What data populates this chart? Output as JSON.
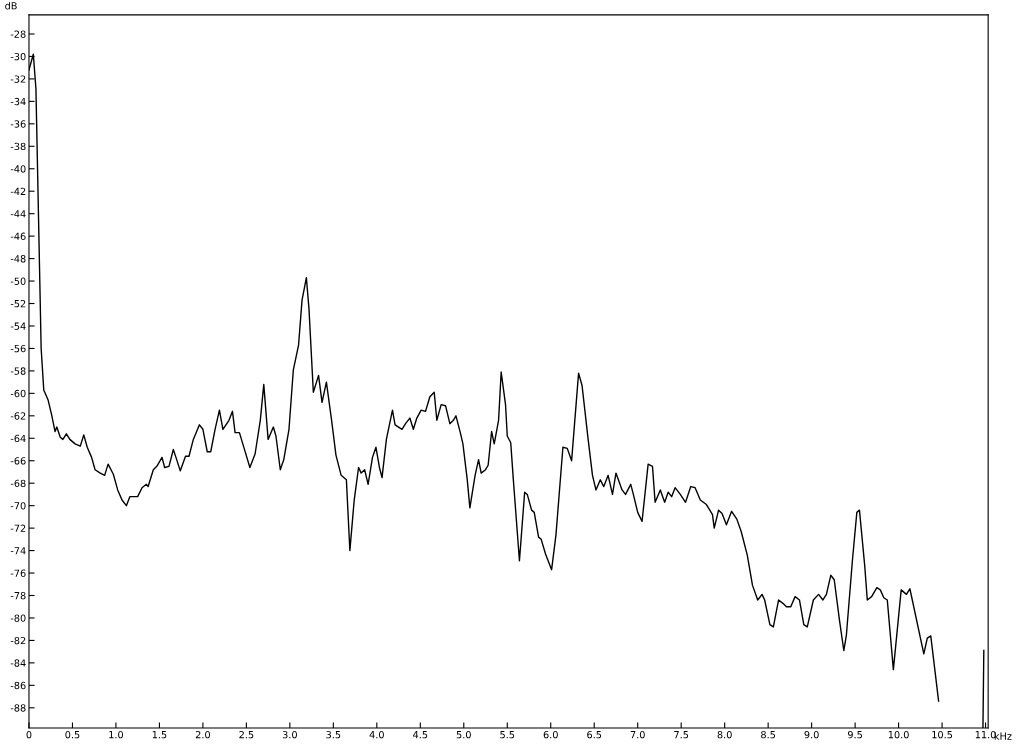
{
  "chart_data": {
    "type": "line",
    "xlabel": "kHz",
    "ylabel": "dB",
    "xlim": [
      0,
      11.03
    ],
    "ylim": [
      -89.8,
      -26.3
    ],
    "xticks": [
      0,
      0.5,
      {
        "value": 1,
        "label": "1.0"
      },
      1.5,
      {
        "value": 2,
        "label": "2.0"
      },
      2.5,
      {
        "value": 3,
        "label": "3.0"
      },
      3.5,
      {
        "value": 4,
        "label": "4.0"
      },
      4.5,
      {
        "value": 5,
        "label": "5.0"
      },
      5.5,
      {
        "value": 6,
        "label": "6.0"
      },
      6.5,
      {
        "value": 7,
        "label": "7.0"
      },
      7.5,
      {
        "value": 8,
        "label": "8.0"
      },
      8.5,
      {
        "value": 9,
        "label": "9.0"
      },
      9.5,
      {
        "value": 10,
        "label": "10.0"
      },
      10.5,
      {
        "value": 11,
        "label": "11.0"
      }
    ],
    "yticks": [
      -28,
      -30,
      -32,
      -34,
      -36,
      -38,
      -40,
      -42,
      -44,
      -46,
      -48,
      -50,
      -52,
      -54,
      -56,
      -58,
      -60,
      -62,
      -64,
      -66,
      -68,
      -70,
      -72,
      -74,
      -76,
      -78,
      -80,
      -82,
      -84,
      -86,
      -88
    ],
    "grid": false,
    "marker": "none",
    "line_style": "solid",
    "series": [
      {
        "color": "#000000",
        "x": [
          0,
          0.05,
          0.08,
          0.14,
          0.17,
          0.22,
          0.26,
          0.3,
          0.32,
          0.36,
          0.39,
          0.43,
          0.47,
          0.53,
          0.59,
          0.63,
          0.67,
          0.72,
          0.76,
          0.82,
          0.87,
          0.91,
          0.97,
          1.02,
          1.07,
          1.12,
          1.16,
          1.25,
          1.3,
          1.35,
          1.37,
          1.43,
          1.47,
          1.53,
          1.56,
          1.61,
          1.66,
          1.69,
          1.74,
          1.8,
          1.84,
          1.89,
          1.96,
          2.0,
          2.05,
          2.09,
          2.14,
          2.19,
          2.23,
          2.3,
          2.34,
          2.37,
          2.42,
          2.49,
          2.54,
          2.6,
          2.66,
          2.7,
          2.75,
          2.81,
          2.84,
          2.89,
          2.93,
          2.99,
          3.04,
          3.1,
          3.14,
          3.19,
          3.22,
          3.27,
          3.33,
          3.37,
          3.42,
          3.48,
          3.53,
          3.59,
          3.65,
          3.69,
          3.74,
          3.79,
          3.82,
          3.86,
          3.9,
          3.95,
          3.99,
          4.03,
          4.06,
          4.11,
          4.18,
          4.21,
          4.29,
          4.33,
          4.38,
          4.42,
          4.46,
          4.51,
          4.56,
          4.61,
          4.66,
          4.69,
          4.74,
          4.79,
          4.84,
          4.88,
          4.91,
          4.96,
          4.99,
          5.04,
          5.07,
          5.13,
          5.17,
          5.2,
          5.25,
          5.28,
          5.32,
          5.35,
          5.4,
          5.43,
          5.48,
          5.5,
          5.54,
          5.57,
          5.64,
          5.7,
          5.73,
          5.78,
          5.81,
          5.86,
          5.89,
          5.94,
          6.01,
          6.06,
          6.14,
          6.19,
          6.24,
          6.32,
          6.36,
          6.43,
          6.48,
          6.52,
          6.57,
          6.61,
          6.66,
          6.71,
          6.75,
          6.82,
          6.86,
          6.92,
          6.95,
          7.0,
          7.05,
          7.12,
          7.17,
          7.2,
          7.26,
          7.31,
          7.35,
          7.39,
          7.43,
          7.49,
          7.55,
          7.61,
          7.66,
          7.72,
          7.79,
          7.86,
          7.88,
          7.93,
          7.97,
          8.02,
          8.08,
          8.14,
          8.19,
          8.26,
          8.32,
          8.38,
          8.43,
          8.46,
          8.52,
          8.56,
          8.62,
          8.67,
          8.71,
          8.76,
          8.81,
          8.86,
          8.91,
          8.95,
          9.02,
          9.08,
          9.13,
          9.17,
          9.22,
          9.26,
          9.32,
          9.37,
          9.4,
          9.47,
          9.52,
          9.55,
          9.61,
          9.64,
          9.69,
          9.75,
          9.79,
          9.83,
          9.87,
          9.94,
          10.03,
          10.09,
          10.13,
          10.29,
          10.33,
          10.37,
          10.46,
          10.5,
          10.7,
          10.97,
          10.98
        ],
        "values": [
          -31.2,
          -29.8,
          -32.9,
          -56,
          -59.7,
          -60.6,
          -61.9,
          -63.4,
          -63,
          -63.9,
          -64.1,
          -63.6,
          -64.1,
          -64.5,
          -64.7,
          -63.7,
          -64.8,
          -65.7,
          -66.8,
          -67.1,
          -67.3,
          -66.3,
          -67.2,
          -68.6,
          -69.5,
          -70,
          -69.2,
          -69.2,
          -68.4,
          -68.1,
          -68.3,
          -66.8,
          -66.5,
          -65.7,
          -66.6,
          -66.5,
          -65,
          -65.7,
          -66.9,
          -65.6,
          -65.6,
          -64.1,
          -62.8,
          -63.2,
          -65.2,
          -65.2,
          -63.2,
          -61.5,
          -63.2,
          -62.4,
          -61.6,
          -63.5,
          -63.5,
          -65.3,
          -66.6,
          -65.4,
          -62.4,
          -59.2,
          -64.1,
          -63,
          -63.8,
          -66.8,
          -65.9,
          -63.2,
          -57.9,
          -55.7,
          -51.7,
          -49.7,
          -52.5,
          -59.9,
          -58.4,
          -60.8,
          -59,
          -62.4,
          -65.5,
          -67.3,
          -67.7,
          -74,
          -69.5,
          -66.6,
          -67.1,
          -66.8,
          -68.1,
          -65.7,
          -64.8,
          -66.6,
          -67.5,
          -64.1,
          -61.5,
          -62.8,
          -63.2,
          -62.7,
          -62.2,
          -63.2,
          -62.2,
          -61.5,
          -61.6,
          -60.3,
          -59.9,
          -62.4,
          -61,
          -61.1,
          -62.7,
          -62.4,
          -62,
          -63.5,
          -64.5,
          -67.7,
          -70.2,
          -67.3,
          -65.9,
          -67.1,
          -66.8,
          -66.4,
          -63.4,
          -64.5,
          -62.4,
          -58.1,
          -61,
          -63.8,
          -64.4,
          -67.7,
          -74.9,
          -68.8,
          -69,
          -70.4,
          -70.6,
          -72.8,
          -73,
          -74.3,
          -75.7,
          -72.6,
          -64.8,
          -64.9,
          -66,
          -58.2,
          -59.3,
          -64.1,
          -67.3,
          -68.6,
          -67.7,
          -68.3,
          -67.3,
          -69,
          -67.1,
          -68.6,
          -69,
          -68.1,
          -69,
          -70.6,
          -71.4,
          -66.3,
          -66.5,
          -69.7,
          -68.6,
          -69.7,
          -68.8,
          -69.2,
          -68.4,
          -69,
          -69.7,
          -68.3,
          -68.4,
          -69.5,
          -69.9,
          -70.8,
          -72,
          -70.4,
          -70.7,
          -71.7,
          -70.5,
          -71.2,
          -72.3,
          -74.4,
          -77.1,
          -78.4,
          -77.9,
          -78.4,
          -80.6,
          -80.8,
          -78.4,
          -78.7,
          -79,
          -79,
          -78.1,
          -78.4,
          -80.6,
          -80.8,
          -78.4,
          -77.9,
          -78.4,
          -77.9,
          -76.2,
          -76.6,
          -80.2,
          -82.9,
          -81.5,
          -74.8,
          -70.6,
          -70.4,
          -75.3,
          -78.4,
          -78.1,
          -77.3,
          -77.5,
          -78.2,
          -78.4,
          -84.6,
          -77.5,
          -77.9,
          -77.4,
          -83.2,
          -81.8,
          -81.6,
          -87.4,
          null,
          null,
          -89.8,
          -82.9
        ]
      }
    ]
  }
}
